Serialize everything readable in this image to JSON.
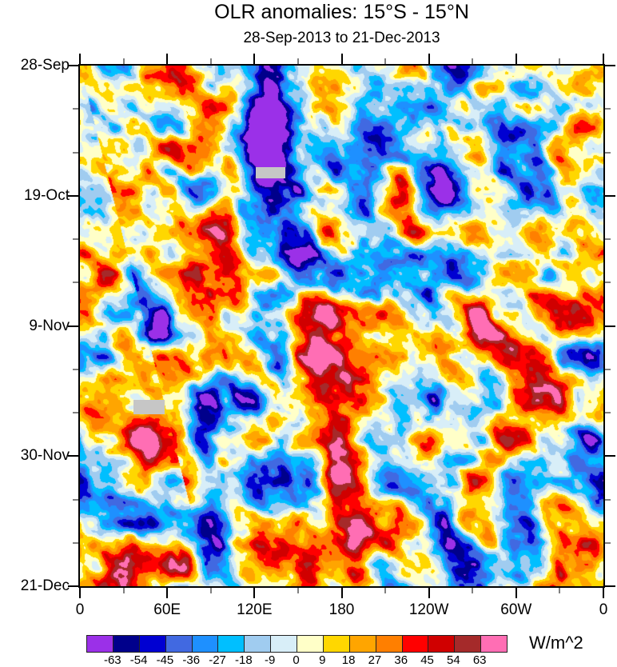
{
  "chart_data": {
    "type": "heatmap",
    "variant": "hovmoller-filled-contour-time-longitude",
    "title": "OLR anomalies: 15°S - 15°N",
    "subtitle": "28-Sep-2013 to 21-Dec-2013",
    "x_axis": {
      "label": "",
      "tick_labels": [
        "0",
        "60E",
        "120E",
        "180",
        "120W",
        "60W",
        "0"
      ],
      "range_deg_lon": [
        0,
        360
      ],
      "major_interval_deg": 60,
      "minor_interval_deg": 30
    },
    "y_axis": {
      "label": "",
      "tick_labels": [
        "28-Sep",
        "19-Oct",
        "9-Nov",
        "30-Nov",
        "21-Dec"
      ],
      "range_days_from_start": [
        0,
        84
      ],
      "major_interval_days": 21,
      "minor_interval_days": 7,
      "direction": "time-increases-downward"
    },
    "colorbar": {
      "units_label": "W/m^2",
      "boundary_labels": [
        "-63",
        "-54",
        "-45",
        "-36",
        "-27",
        "-18",
        "-9",
        "0",
        "9",
        "18",
        "27",
        "36",
        "45",
        "54",
        "63"
      ],
      "levels": [
        -63,
        -54,
        -45,
        -36,
        -27,
        -18,
        -9,
        0,
        9,
        18,
        27,
        36,
        45,
        54,
        63
      ],
      "colors": [
        "#9b30e8",
        "#00008b",
        "#0000d2",
        "#4169e1",
        "#1e90ff",
        "#00bfff",
        "#a0ccf0",
        "#d8eef8",
        "#ffffc8",
        "#ffd700",
        "#ffa500",
        "#ff7f00",
        "#ff0000",
        "#d00000",
        "#a52a2a",
        "#ff6eb4"
      ]
    },
    "missing_data_patches": [
      {
        "lon_deg_min": 121,
        "lon_deg_max": 141,
        "day_min": 16.4,
        "day_max": 18.2,
        "color": "#c6c6c6"
      },
      {
        "lon_deg_min": 37,
        "lon_deg_max": 58,
        "day_min": 53.9,
        "day_max": 56.2,
        "color": "#c6c6c6"
      }
    ],
    "approx_anomaly_centers": [
      {
        "lon": 75,
        "day": 3,
        "amplitude_wm2": 45,
        "lon_radius_deg": 16,
        "day_radius": 4
      },
      {
        "lon": 170,
        "day": 3,
        "amplitude_wm2": 40,
        "lon_radius_deg": 10,
        "day_radius": 3
      },
      {
        "lon": 128,
        "day": 8,
        "amplitude_wm2": -60,
        "lon_radius_deg": 10,
        "day_radius": 6
      },
      {
        "lon": 265,
        "day": 18,
        "amplitude_wm2": -35,
        "lon_radius_deg": 25,
        "day_radius": 8
      },
      {
        "lon": 120,
        "day": 20,
        "amplitude_wm2": -50,
        "lon_radius_deg": 16,
        "day_radius": 6
      },
      {
        "lon": 100,
        "day": 27,
        "amplitude_wm2": 55,
        "lon_radius_deg": 8,
        "day_radius": 4
      },
      {
        "lon": 150,
        "day": 33,
        "amplitude_wm2": -45,
        "lon_radius_deg": 12,
        "day_radius": 5
      },
      {
        "lon": 300,
        "day": 40,
        "amplitude_wm2": 30,
        "lon_radius_deg": 20,
        "day_radius": 8
      },
      {
        "lon": 56,
        "day": 42,
        "amplitude_wm2": -62,
        "lon_radius_deg": 6,
        "day_radius": 3
      },
      {
        "lon": 160,
        "day": 47,
        "amplitude_wm2": 55,
        "lon_radius_deg": 14,
        "day_radius": 6
      },
      {
        "lon": 85,
        "day": 62,
        "amplitude_wm2": -65,
        "lon_radius_deg": 7,
        "day_radius": 4
      },
      {
        "lon": 40,
        "day": 64,
        "amplitude_wm2": 45,
        "lon_radius_deg": 10,
        "day_radius": 5
      },
      {
        "lon": 178,
        "day": 64,
        "amplitude_wm2": 55,
        "lon_radius_deg": 8,
        "day_radius": 4
      },
      {
        "lon": 92,
        "day": 74,
        "amplitude_wm2": -45,
        "lon_radius_deg": 8,
        "day_radius": 5
      },
      {
        "lon": 25,
        "day": 78,
        "amplitude_wm2": 35,
        "lon_radius_deg": 10,
        "day_radius": 5
      },
      {
        "lon": 192,
        "day": 80,
        "amplitude_wm2": 58,
        "lon_radius_deg": 8,
        "day_radius": 4
      }
    ]
  }
}
